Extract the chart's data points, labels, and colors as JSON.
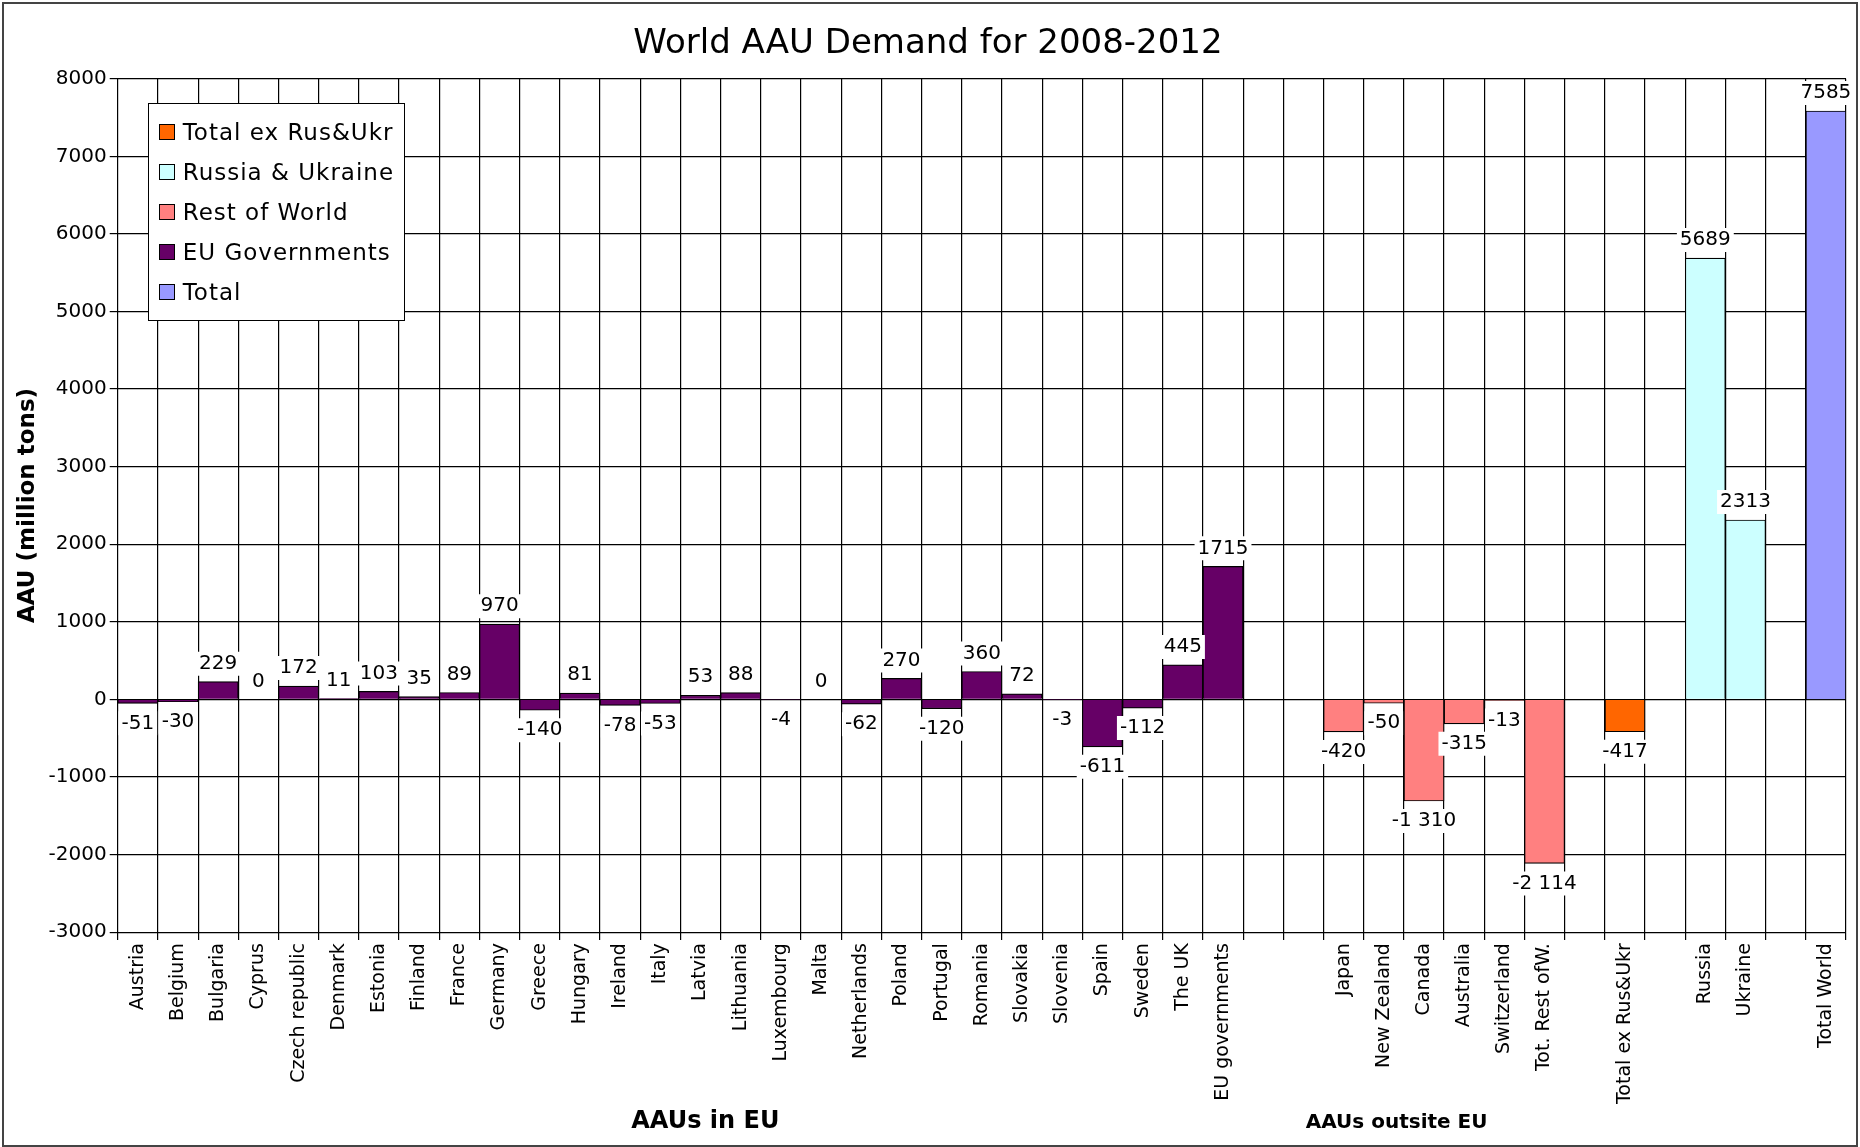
{
  "chart_data": {
    "type": "bar",
    "title": "World AAU Demand for 2008-2012",
    "ylabel": "AAU (million tons)",
    "xlabel": "AAUs in EU",
    "annotations": [
      "AAUs outsite EU"
    ],
    "categories": [
      "Austria",
      "Belgium",
      "Bulgaria",
      "Cyprus",
      "Czech republic",
      "Denmark",
      "Estonia",
      "Finland",
      "France",
      "Germany",
      "Greece",
      "Hungary",
      "Ireland",
      "Italy",
      "Latvia",
      "Lithuania",
      "Luxembourg",
      "Malta",
      "Netherlands",
      "Poland",
      "Portugal",
      "Romania",
      "Slovakia",
      "Slovenia",
      "Spain",
      "Sweden",
      "The UK",
      "EU governments",
      null,
      null,
      "Japan",
      "New Zealand",
      "Canada",
      "Australia",
      "Switzerland",
      "Tot. Rest ofW.",
      null,
      "Total ex Rus&Ukr",
      null,
      "Russia",
      "Ukraine",
      null,
      "Total World"
    ],
    "stacked": true,
    "ylim": [
      -3000,
      8000
    ],
    "yticks": [
      -3000,
      -2000,
      -1000,
      0,
      1000,
      2000,
      3000,
      4000,
      5000,
      6000,
      7000,
      8000
    ],
    "grid": true,
    "legend": "top left",
    "series": [
      {
        "name": "Total ex Rus&Ukr",
        "color": "#ff6600",
        "values": [
          null,
          null,
          null,
          null,
          null,
          null,
          null,
          null,
          null,
          null,
          null,
          null,
          null,
          null,
          null,
          null,
          null,
          null,
          null,
          null,
          null,
          null,
          null,
          null,
          null,
          null,
          null,
          null,
          null,
          null,
          null,
          null,
          null,
          null,
          null,
          null,
          null,
          -417,
          null,
          null,
          null,
          null,
          null
        ],
        "value_labels": [
          null,
          null,
          null,
          null,
          null,
          null,
          null,
          null,
          null,
          null,
          null,
          null,
          null,
          null,
          null,
          null,
          null,
          null,
          null,
          null,
          null,
          null,
          null,
          null,
          null,
          null,
          null,
          null,
          null,
          null,
          null,
          null,
          null,
          null,
          null,
          null,
          null,
          "-417",
          null,
          null,
          null,
          null,
          null
        ]
      },
      {
        "name": "Russia & Ukraine",
        "color": "#ccffff",
        "values": [
          null,
          null,
          null,
          null,
          null,
          null,
          null,
          null,
          null,
          null,
          null,
          null,
          null,
          null,
          null,
          null,
          null,
          null,
          null,
          null,
          null,
          null,
          null,
          null,
          null,
          null,
          null,
          null,
          null,
          null,
          null,
          null,
          null,
          null,
          null,
          null,
          null,
          null,
          null,
          5689,
          2313,
          null,
          null
        ],
        "value_labels": [
          null,
          null,
          null,
          null,
          null,
          null,
          null,
          null,
          null,
          null,
          null,
          null,
          null,
          null,
          null,
          null,
          null,
          null,
          null,
          null,
          null,
          null,
          null,
          null,
          null,
          null,
          null,
          null,
          null,
          null,
          null,
          null,
          null,
          null,
          null,
          null,
          null,
          null,
          null,
          "5689",
          "2313",
          null,
          null
        ]
      },
      {
        "name": "Rest of World",
        "color": "#ff8080",
        "values": [
          null,
          null,
          null,
          null,
          null,
          null,
          null,
          null,
          null,
          null,
          null,
          null,
          null,
          null,
          null,
          null,
          null,
          null,
          null,
          null,
          null,
          null,
          null,
          null,
          null,
          null,
          null,
          null,
          null,
          null,
          -420,
          -50,
          -1310,
          -315,
          -13,
          -2114,
          null,
          null,
          null,
          null,
          null,
          null,
          null
        ],
        "value_labels": [
          null,
          null,
          null,
          null,
          null,
          null,
          null,
          null,
          null,
          null,
          null,
          null,
          null,
          null,
          null,
          null,
          null,
          null,
          null,
          null,
          null,
          null,
          null,
          null,
          null,
          null,
          null,
          null,
          null,
          null,
          "-420",
          "-50",
          "-1 310",
          "-315",
          "-13",
          "-2 114",
          null,
          null,
          null,
          null,
          null,
          null,
          null
        ]
      },
      {
        "name": "EU Governments",
        "color": "#660066",
        "values": [
          -51,
          -30,
          229,
          0,
          172,
          11,
          103,
          35,
          89,
          970,
          -140,
          81,
          -78,
          -53,
          53,
          88,
          -4,
          0,
          -62,
          270,
          -120,
          360,
          72,
          -3,
          -611,
          -112,
          445,
          1715,
          null,
          null,
          null,
          null,
          null,
          null,
          null,
          null,
          null,
          null,
          null,
          null,
          null,
          null,
          null
        ],
        "value_labels": [
          "-51",
          "-30",
          "229",
          "0",
          "172",
          "11",
          "103",
          "35",
          "89",
          "970",
          "-140",
          "81",
          "-78",
          "-53",
          "53",
          "88",
          "-4",
          "0",
          "-62",
          "270",
          "-120",
          "360",
          "72",
          "-3",
          "-611",
          "-112",
          "445",
          "1715",
          null,
          null,
          null,
          null,
          null,
          null,
          null,
          null,
          null,
          null,
          null,
          null,
          null,
          null,
          null
        ]
      },
      {
        "name": "Total",
        "color": "#9999ff",
        "values": [
          null,
          null,
          null,
          null,
          null,
          null,
          null,
          null,
          null,
          null,
          null,
          null,
          null,
          null,
          null,
          null,
          null,
          null,
          null,
          null,
          null,
          null,
          null,
          null,
          null,
          null,
          null,
          null,
          null,
          null,
          null,
          null,
          null,
          null,
          null,
          null,
          null,
          null,
          null,
          null,
          null,
          null,
          7585
        ],
        "value_labels": [
          null,
          null,
          null,
          null,
          null,
          null,
          null,
          null,
          null,
          null,
          null,
          null,
          null,
          null,
          null,
          null,
          null,
          null,
          null,
          null,
          null,
          null,
          null,
          null,
          null,
          null,
          null,
          null,
          null,
          null,
          null,
          null,
          null,
          null,
          null,
          null,
          null,
          null,
          null,
          null,
          null,
          null,
          "7585"
        ]
      }
    ]
  }
}
